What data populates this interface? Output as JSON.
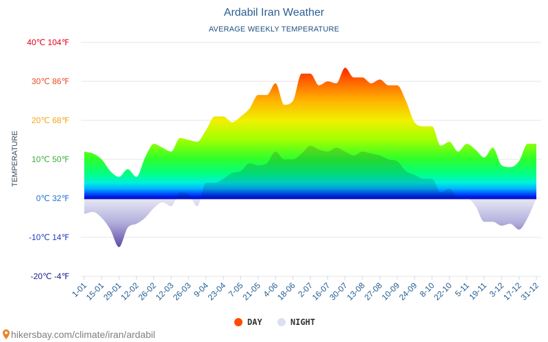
{
  "footer": {
    "source_text": "hikersbay.com/climate/iran/ardabil",
    "pin_icon": "map-pin-icon",
    "pin_color": "#e8842a"
  },
  "chart_data": {
    "type": "area",
    "title": "Ardabil Iran Weather",
    "subtitle": "AVERAGE WEEKLY TEMPERATURE",
    "ylabel": "TEMPERATURE",
    "xlabel": "",
    "ylim": [
      -20,
      40
    ],
    "grid": true,
    "legend_position": "bottom-center",
    "x_tick_labels": [
      "1-01",
      "15-01",
      "29-01",
      "12-02",
      "26-02",
      "12-03",
      "26-03",
      "9-04",
      "23-04",
      "7-05",
      "21-05",
      "4-06",
      "18-06",
      "2-07",
      "16-07",
      "30-07",
      "13-08",
      "27-08",
      "10-09",
      "24-09",
      "8-10",
      "22-10",
      "5-11",
      "19-11",
      "3-12",
      "17-12",
      "31-12"
    ],
    "y_ticks": [
      {
        "value": 40,
        "label": "40℃ 104℉",
        "color": "#e3001b"
      },
      {
        "value": 30,
        "label": "30℃ 86℉",
        "color": "#ea4a1f"
      },
      {
        "value": 20,
        "label": "20℃ 68℉",
        "color": "#f2a413"
      },
      {
        "value": 10,
        "label": "10℃ 50℉",
        "color": "#3aac3a"
      },
      {
        "value": 0,
        "label": "0℃ 32℉",
        "color": "#1d6fd6"
      },
      {
        "value": -10,
        "label": "-10℃ 14℉",
        "color": "#1f3ac4"
      },
      {
        "value": -20,
        "label": "-20℃ -4℉",
        "color": "#17178c"
      }
    ],
    "series": [
      {
        "name": "DAY",
        "color": "#ff4a00",
        "values": [
          12,
          11.5,
          10,
          7,
          5.5,
          7.5,
          5.5,
          10.5,
          14,
          13,
          12,
          15.5,
          15,
          14.5,
          17.5,
          21,
          21,
          19.5,
          21,
          23,
          26.5,
          26.5,
          29.5,
          24,
          25,
          32,
          32,
          29,
          30,
          29.5,
          33.5,
          31,
          31,
          29.5,
          30.5,
          29,
          29,
          25,
          19.5,
          18.5,
          18.5,
          13.5,
          14.5,
          12,
          14,
          12.5,
          10.5,
          13,
          8.5,
          8,
          9.5,
          14,
          14
        ]
      },
      {
        "name": "NIGHT",
        "color": "#dcdff0",
        "values": [
          -4,
          -3.5,
          -5,
          -8,
          -12.5,
          -7.5,
          -6.5,
          -5,
          -2.5,
          -1,
          -2,
          1.5,
          1,
          -2,
          4,
          4,
          5,
          6.5,
          7,
          9,
          8.5,
          9,
          12,
          10,
          10,
          11.5,
          13.5,
          12.5,
          12,
          13,
          12,
          11,
          12,
          11.5,
          11,
          10,
          9.5,
          7,
          6,
          5,
          5,
          1.5,
          2.5,
          0,
          0,
          -2,
          -6,
          -6,
          -7,
          -6.5,
          -8,
          -5,
          0
        ]
      }
    ],
    "day_color_scale": [
      {
        "value": 40,
        "color": "#ff0000"
      },
      {
        "value": 34,
        "color": "#ff1e00"
      },
      {
        "value": 30,
        "color": "#ff6400"
      },
      {
        "value": 25,
        "color": "#ffb400"
      },
      {
        "value": 20,
        "color": "#f0f000"
      },
      {
        "value": 15,
        "color": "#a0ff00"
      },
      {
        "value": 10,
        "color": "#2cff2c"
      },
      {
        "value": 6,
        "color": "#00ff8c"
      },
      {
        "value": 4,
        "color": "#00f0dc"
      },
      {
        "value": 2.5,
        "color": "#00b4ff"
      },
      {
        "value": 1.2,
        "color": "#0050ff"
      },
      {
        "value": 0,
        "color": "#0000cc"
      }
    ],
    "night_color_scale": [
      {
        "value": 0,
        "color": "#e8e8f6"
      },
      {
        "value": -6,
        "color": "#b4b2dc"
      },
      {
        "value": -13,
        "color": "#5a44a4"
      }
    ],
    "zero_line_color": "#0a18d8",
    "grid_color": "#e6e6e6"
  }
}
